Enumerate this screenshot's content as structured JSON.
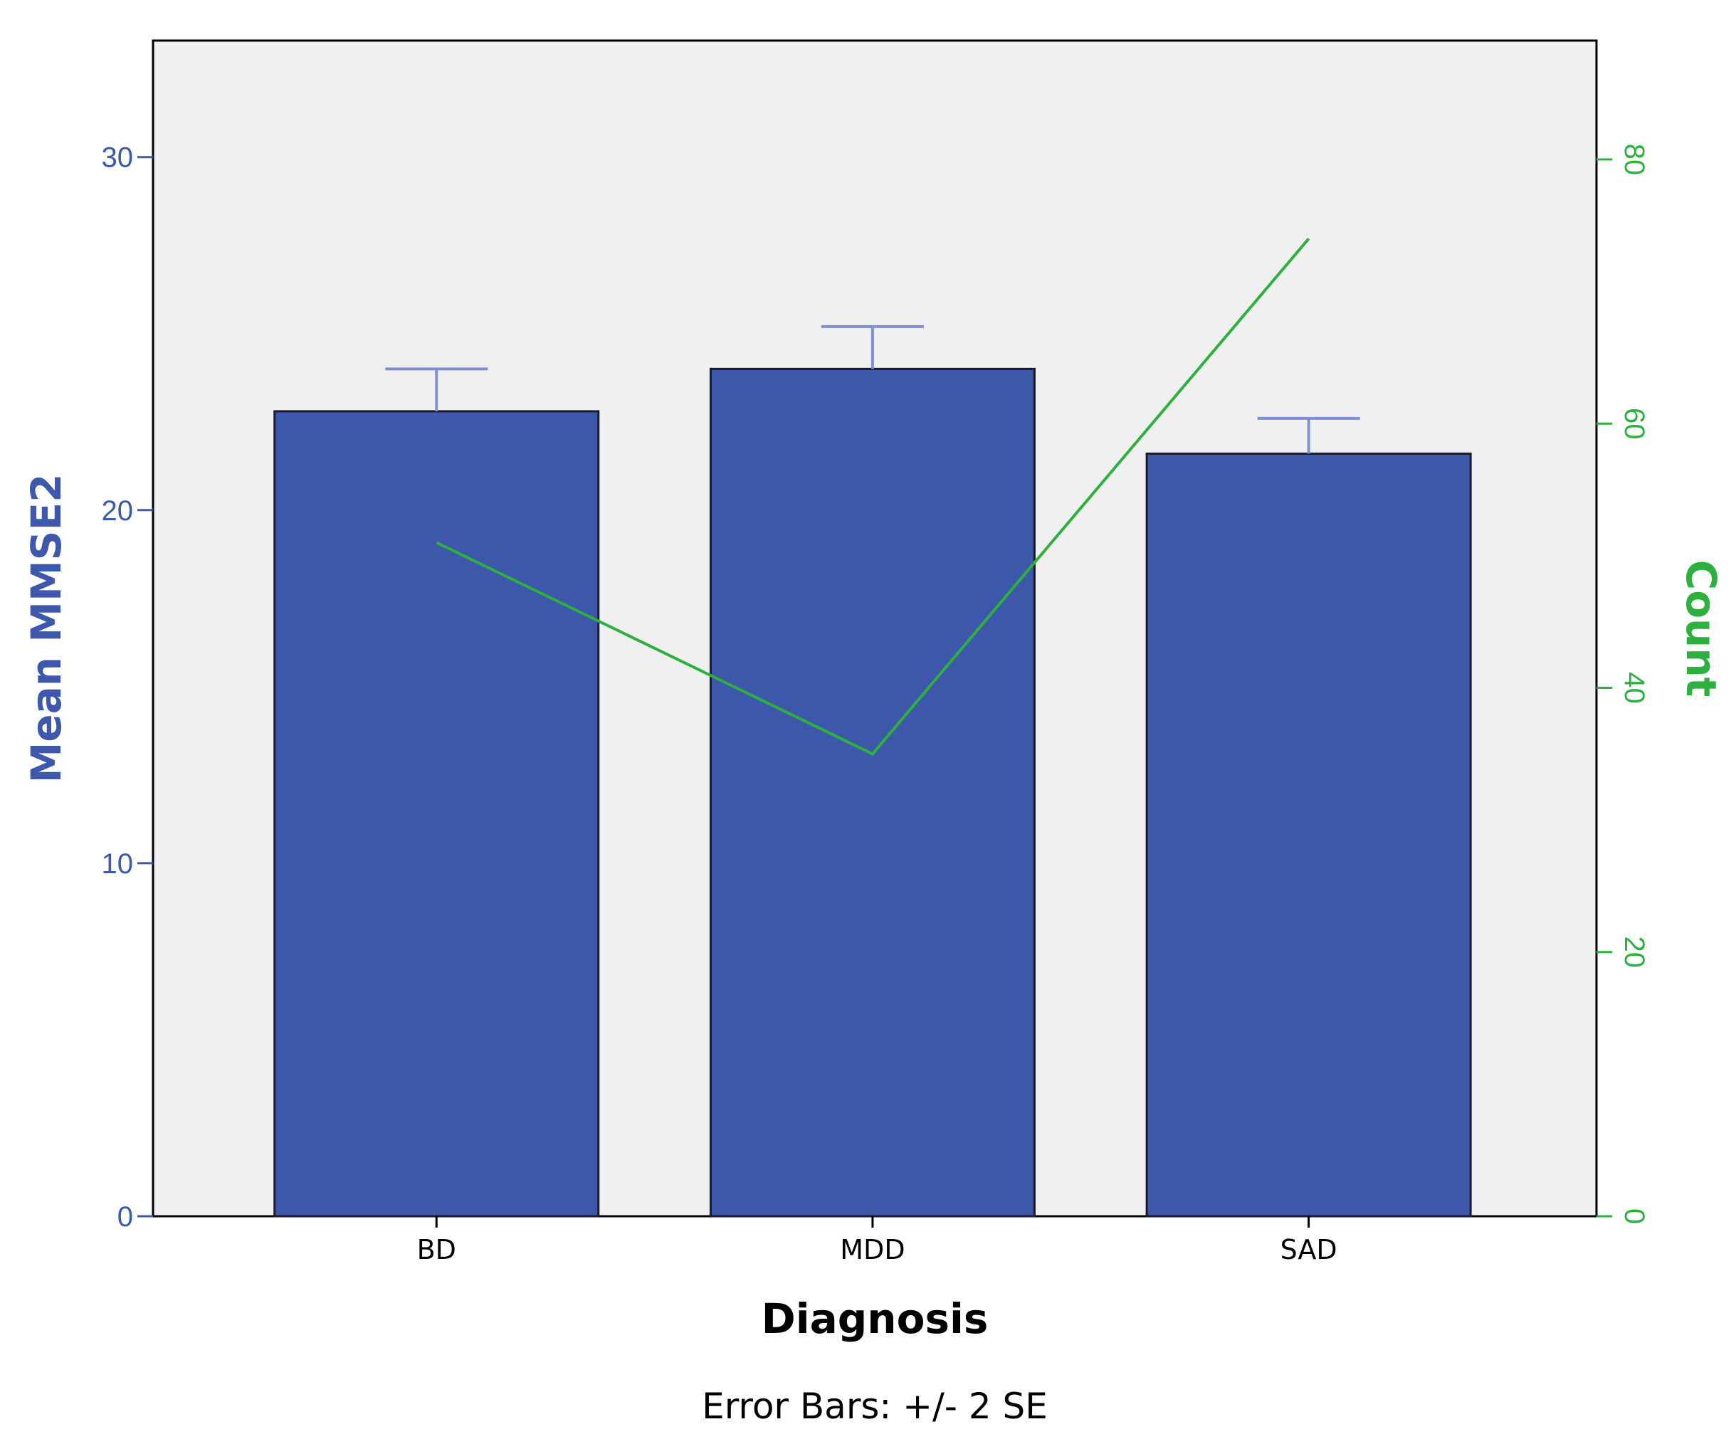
{
  "chart_data": {
    "type": "bar",
    "categories": [
      "BD",
      "MDD",
      "SAD"
    ],
    "series": [
      {
        "type": "bar",
        "axis": "left",
        "values": [
          22.8,
          24.0,
          21.6
        ],
        "error_upper": [
          24.0,
          25.2,
          22.6
        ]
      },
      {
        "type": "line",
        "axis": "right",
        "values": [
          51,
          35,
          74
        ]
      }
    ],
    "xlabel": "Diagnosis",
    "ylabel": "Mean MMSE2",
    "y2label": "Count",
    "ylim": [
      0,
      33.3
    ],
    "y2lim": [
      0,
      89.0
    ],
    "yticks": [
      0,
      10,
      20,
      30
    ],
    "y2ticks": [
      0,
      20,
      40,
      60,
      80
    ],
    "note": "Error Bars: +/- 2 SE",
    "colors": {
      "bar": "#3d58ab",
      "error_bar": "#7f8fd1",
      "line": "#2db040",
      "left_axis": "#3d58ad",
      "right_axis": "#2db040",
      "plot_background": "#f0f0f0"
    },
    "grid": false,
    "legend": "none"
  }
}
